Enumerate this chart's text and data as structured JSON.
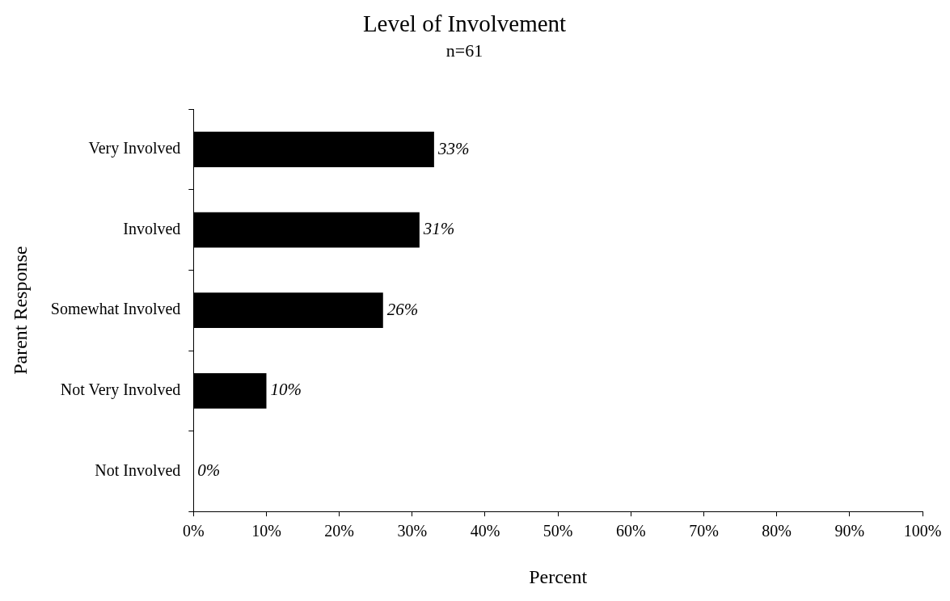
{
  "chart_data": {
    "type": "bar",
    "orientation": "horizontal",
    "title": "Level of Involvement",
    "subtitle": "n=61",
    "xlabel": "Percent",
    "ylabel": "Parent Response",
    "categories": [
      "Very Involved",
      "Involved",
      "Somewhat Involved",
      "Not Very Involved",
      "Not Involved"
    ],
    "values": [
      33,
      31,
      26,
      10,
      0
    ],
    "color": "#000000",
    "value_labels": [
      "33%",
      "31%",
      "26%",
      "10%",
      "0%"
    ],
    "xlim": [
      0,
      100
    ],
    "xticks": [
      {
        "value": 0,
        "label": "0%"
      },
      {
        "value": 10,
        "label": "10%"
      },
      {
        "value": 20,
        "label": "20%"
      },
      {
        "value": 30,
        "label": "30%"
      },
      {
        "value": 40,
        "label": "40%"
      },
      {
        "value": 50,
        "label": "50%"
      },
      {
        "value": 60,
        "label": "60%"
      },
      {
        "value": 70,
        "label": "70%"
      },
      {
        "value": 80,
        "label": "80%"
      },
      {
        "value": 90,
        "label": "90%"
      },
      {
        "value": 100,
        "label": "100%"
      }
    ],
    "grid": false,
    "legend": false
  }
}
